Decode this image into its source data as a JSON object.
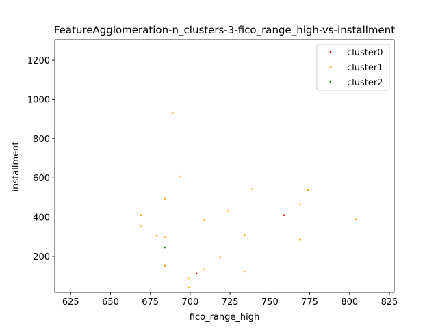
{
  "chart_data": {
    "type": "scatter",
    "title": "FeatureAgglomeration-n_clusters-3-fico_range_high-vs-installment",
    "xlabel": "fico_range_high",
    "ylabel": "installment",
    "xlim": [
      615,
      828
    ],
    "ylim": [
      15,
      1305
    ],
    "xticks": [
      625,
      650,
      675,
      700,
      725,
      750,
      775,
      800,
      825
    ],
    "yticks": [
      200,
      400,
      600,
      800,
      1000,
      1200
    ],
    "grid": false,
    "legend_position": "top-right",
    "series": [
      {
        "name": "cluster0",
        "color": "#ff0000",
        "points": [
          {
            "x": 759,
            "y": 410
          },
          {
            "x": 704,
            "y": 113
          }
        ]
      },
      {
        "name": "cluster1",
        "color": "#ffa500",
        "points": [
          {
            "x": 689,
            "y": 930
          },
          {
            "x": 694,
            "y": 608
          },
          {
            "x": 739,
            "y": 543
          },
          {
            "x": 774,
            "y": 538
          },
          {
            "x": 684,
            "y": 493
          },
          {
            "x": 769,
            "y": 465
          },
          {
            "x": 724,
            "y": 432
          },
          {
            "x": 669,
            "y": 410
          },
          {
            "x": 709,
            "y": 386
          },
          {
            "x": 804,
            "y": 389
          },
          {
            "x": 669,
            "y": 354
          },
          {
            "x": 734,
            "y": 308
          },
          {
            "x": 679,
            "y": 304
          },
          {
            "x": 684,
            "y": 295
          },
          {
            "x": 769,
            "y": 285
          },
          {
            "x": 719,
            "y": 193
          },
          {
            "x": 684,
            "y": 152
          },
          {
            "x": 709,
            "y": 134
          },
          {
            "x": 734,
            "y": 123
          },
          {
            "x": 699,
            "y": 85
          },
          {
            "x": 699,
            "y": 40
          }
        ]
      },
      {
        "name": "cluster2",
        "color": "#008000",
        "points": [
          {
            "x": 684,
            "y": 245
          }
        ]
      }
    ]
  }
}
